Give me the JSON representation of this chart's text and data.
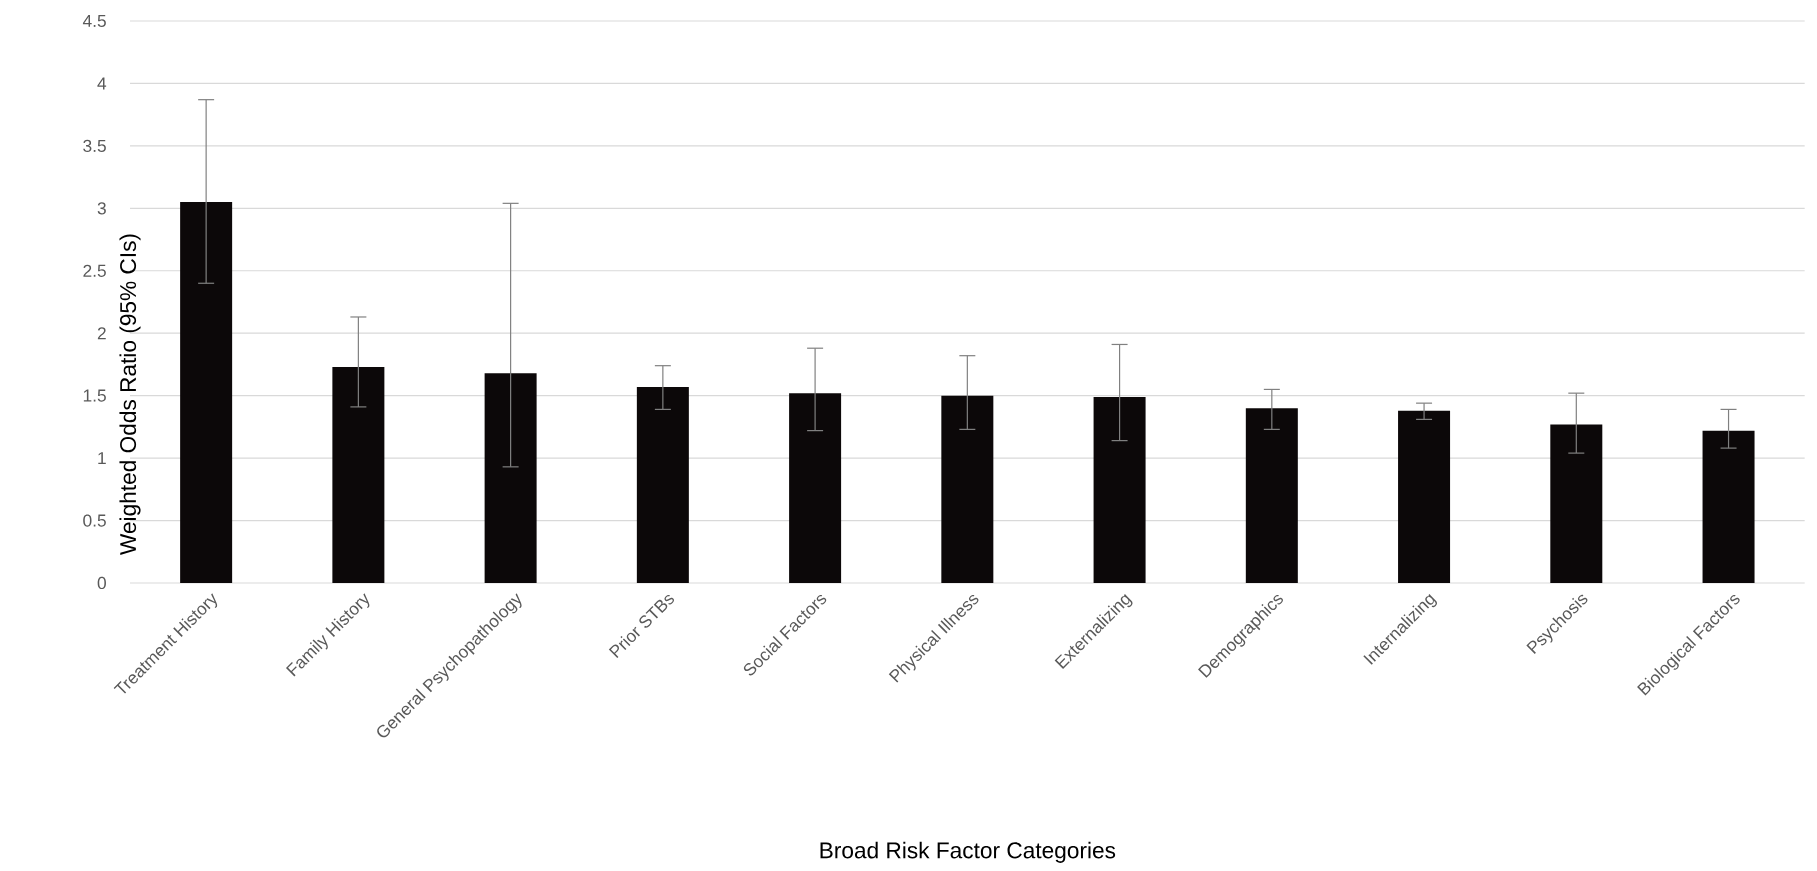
{
  "chart_data": {
    "type": "bar",
    "xlabel": "Broad Risk Factor Categories",
    "ylabel": "Weighted Odds Ratio (95% CIs)",
    "categories": [
      "Treatment History",
      "Family History",
      "General Psychopathology",
      "Prior STBs",
      "Social Factors",
      "Physical Illness",
      "Externalizing",
      "Demographics",
      "Internalizing",
      "Psychosis",
      "Biological Factors"
    ],
    "values": [
      3.05,
      1.73,
      1.68,
      1.57,
      1.52,
      1.5,
      1.49,
      1.4,
      1.38,
      1.27,
      1.22
    ],
    "errors": [
      [
        2.4,
        3.87
      ],
      [
        1.41,
        2.13
      ],
      [
        0.93,
        3.04
      ],
      [
        1.39,
        1.74
      ],
      [
        1.22,
        1.88
      ],
      [
        1.23,
        1.82
      ],
      [
        1.14,
        1.91
      ],
      [
        1.23,
        1.55
      ],
      [
        1.31,
        1.44
      ],
      [
        1.04,
        1.52
      ],
      [
        1.08,
        1.39
      ]
    ],
    "color": "#0c0809",
    "ylim": [
      0,
      4.5
    ],
    "yticks": [
      0,
      0.5,
      1,
      1.5,
      2,
      2.5,
      3,
      3.5,
      4,
      4.5
    ],
    "grid": "y"
  }
}
